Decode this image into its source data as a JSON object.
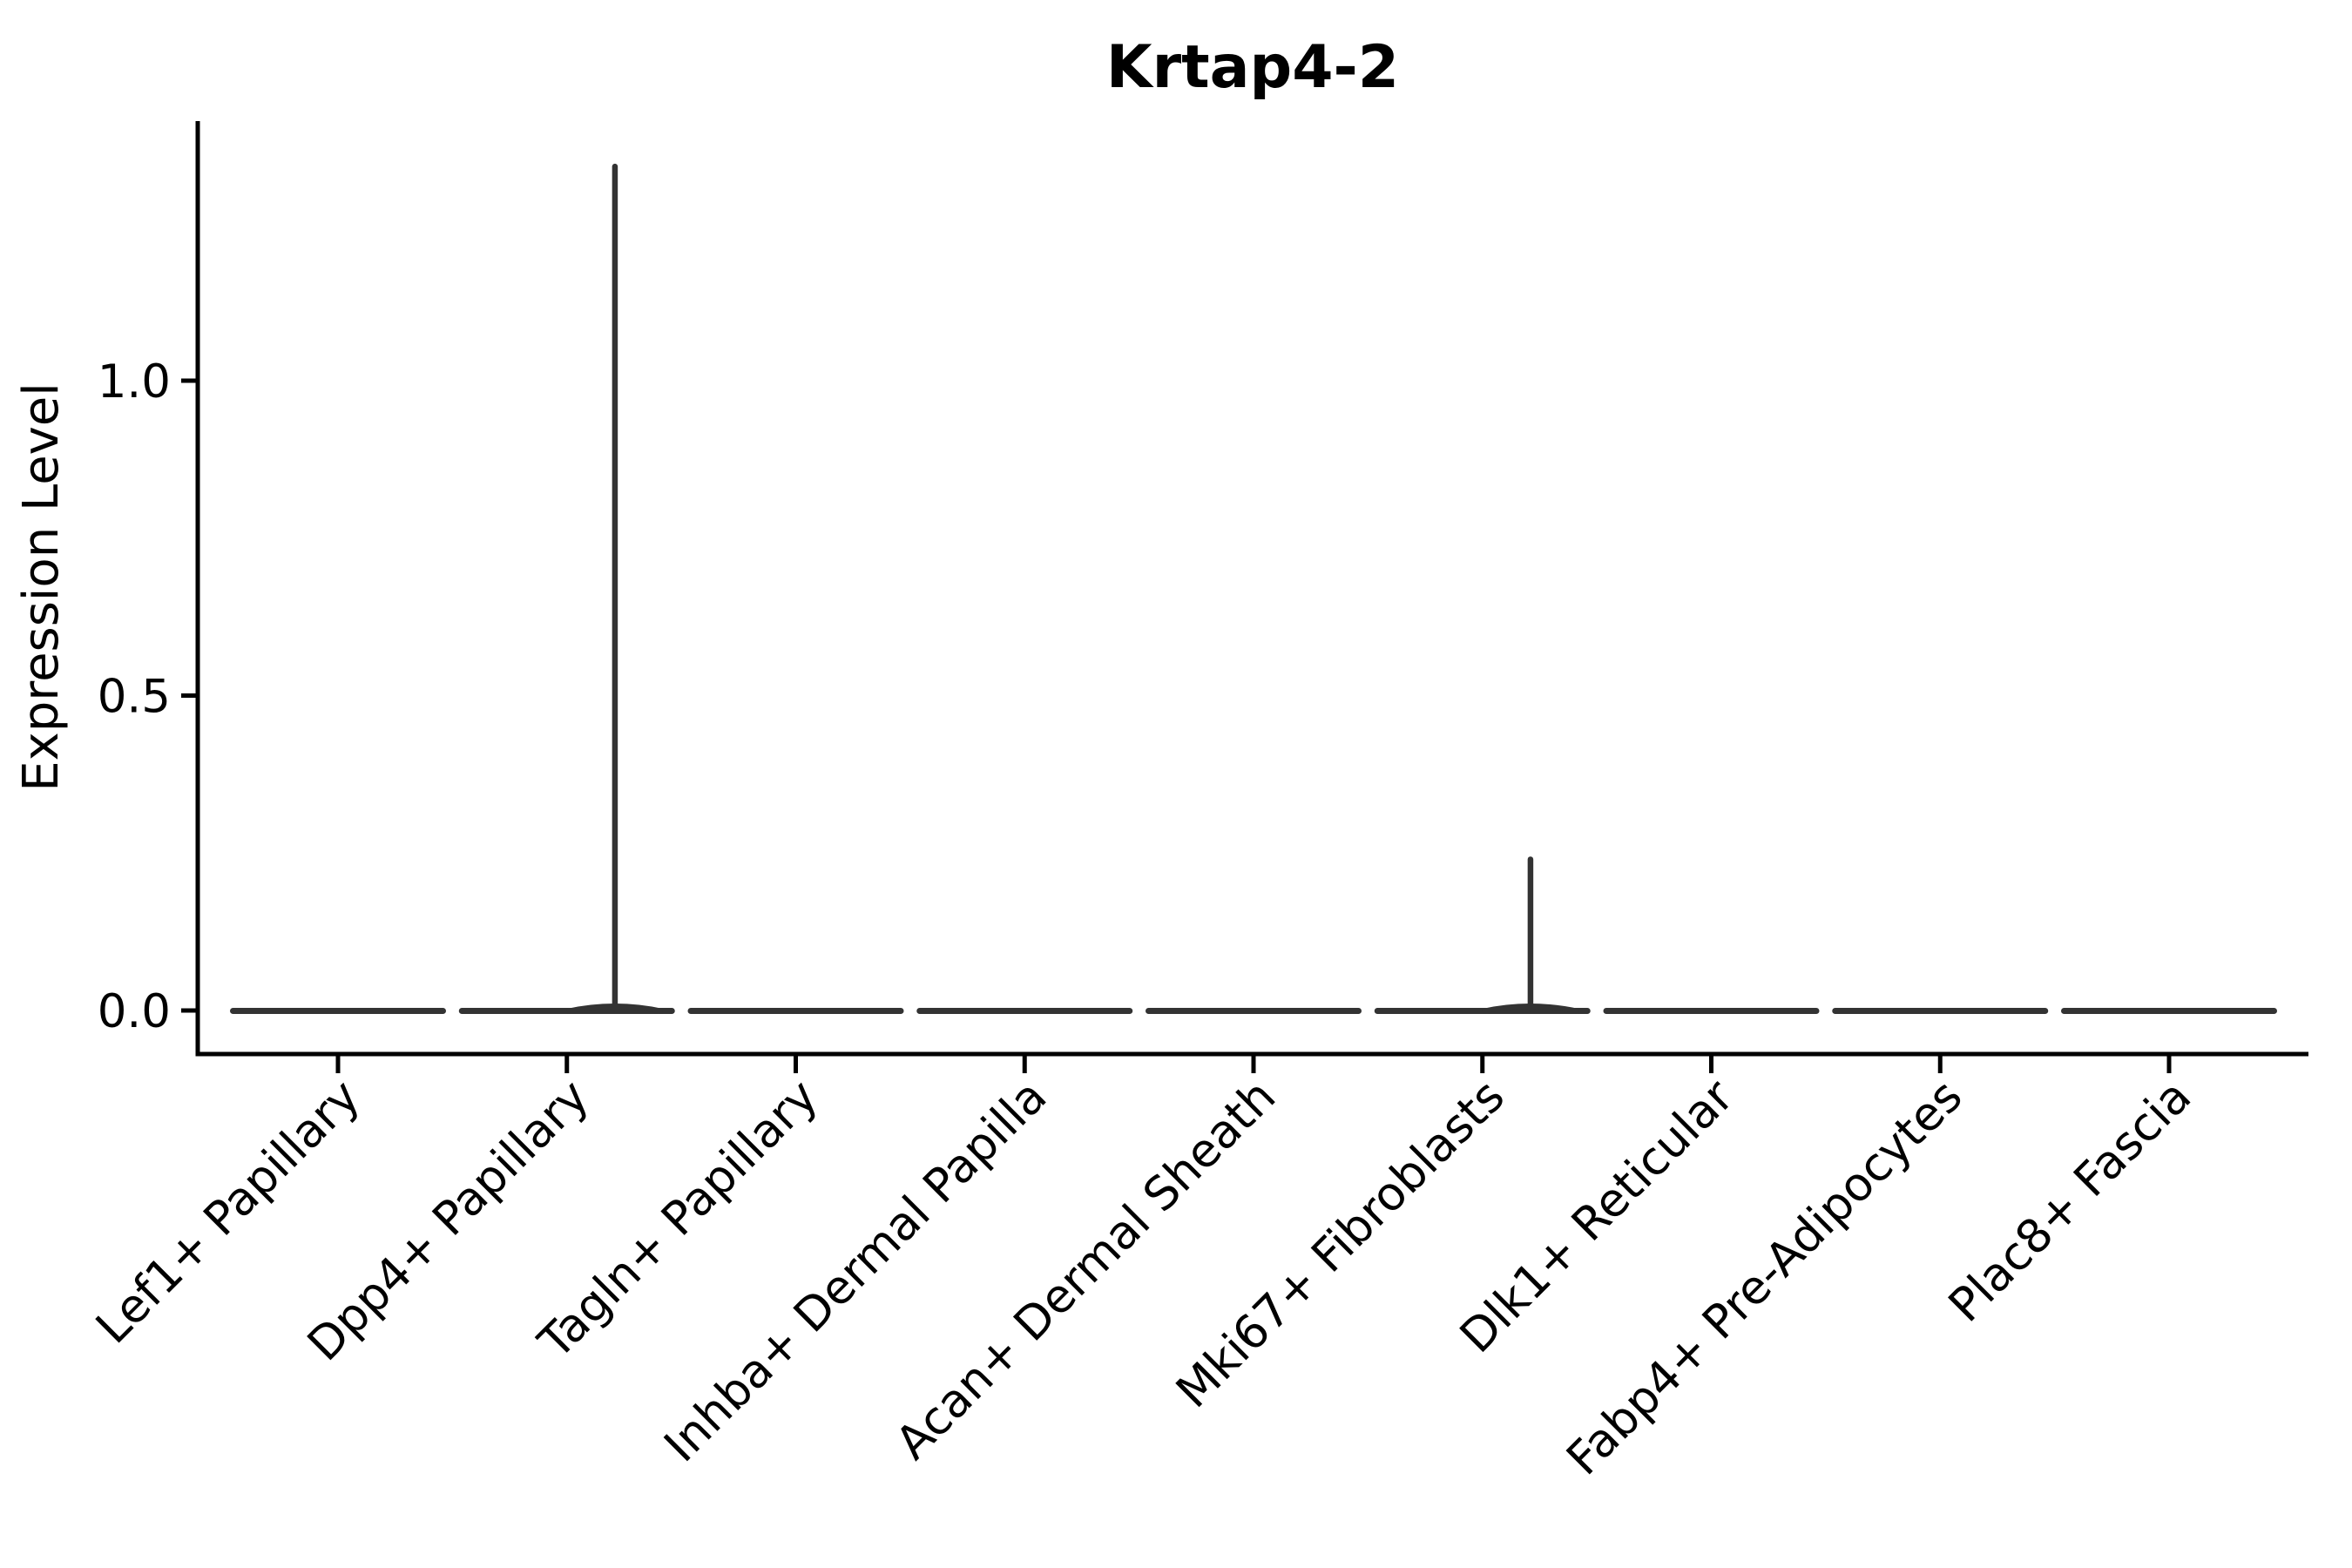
{
  "chart_data": {
    "type": "violin",
    "title": "Krtap4-2",
    "xlabel": "",
    "ylabel": "Expression Level",
    "legend": "none",
    "grid": false,
    "ylim": [
      -0.07,
      1.41
    ],
    "yticks": [
      {
        "value": 0.0,
        "label": "0.0"
      },
      {
        "value": 0.5,
        "label": "0.5"
      },
      {
        "value": 1.0,
        "label": "1.0"
      }
    ],
    "categories": [
      "Lef1+ Papillary",
      "Dpp4+ Papillary",
      "Tagln+ Papillary",
      "Inhba+ Dermal Papilla",
      "Acan+ Dermal Sheath",
      "Mki67+ Fibroblasts",
      "Dlk1+ Reticular",
      "Fabp4+ Pre-Adipocytes",
      "Plac8+ Fascia"
    ],
    "violins": [
      {
        "category": "Lef1+ Papillary",
        "baseline": 0.0,
        "max_expression": 0.0,
        "spike": false,
        "spike_offset": 0
      },
      {
        "category": "Dpp4+ Papillary",
        "baseline": 0.0,
        "max_expression": 1.34,
        "spike": true,
        "spike_offset": 0.21
      },
      {
        "category": "Tagln+ Papillary",
        "baseline": 0.0,
        "max_expression": 0.0,
        "spike": false,
        "spike_offset": 0
      },
      {
        "category": "Inhba+ Dermal Papilla",
        "baseline": 0.0,
        "max_expression": 0.0,
        "spike": false,
        "spike_offset": 0
      },
      {
        "category": "Acan+ Dermal Sheath",
        "baseline": 0.0,
        "max_expression": 0.0,
        "spike": false,
        "spike_offset": 0
      },
      {
        "category": "Mki67+ Fibroblasts",
        "baseline": 0.0,
        "max_expression": 0.24,
        "spike": true,
        "spike_offset": 0.21
      },
      {
        "category": "Dlk1+ Reticular",
        "baseline": 0.0,
        "max_expression": 0.0,
        "spike": false,
        "spike_offset": 0
      },
      {
        "category": "Fabp4+ Pre-Adipocytes",
        "baseline": 0.0,
        "max_expression": 0.0,
        "spike": false,
        "spike_offset": 0
      },
      {
        "category": "Plac8+ Fascia",
        "baseline": 0.0,
        "max_expression": 0.0,
        "spike": false,
        "spike_offset": 0
      }
    ],
    "colors": {
      "violin_outline": "#333333",
      "axes": "#000000",
      "text": "#000000",
      "background": "#ffffff"
    }
  }
}
